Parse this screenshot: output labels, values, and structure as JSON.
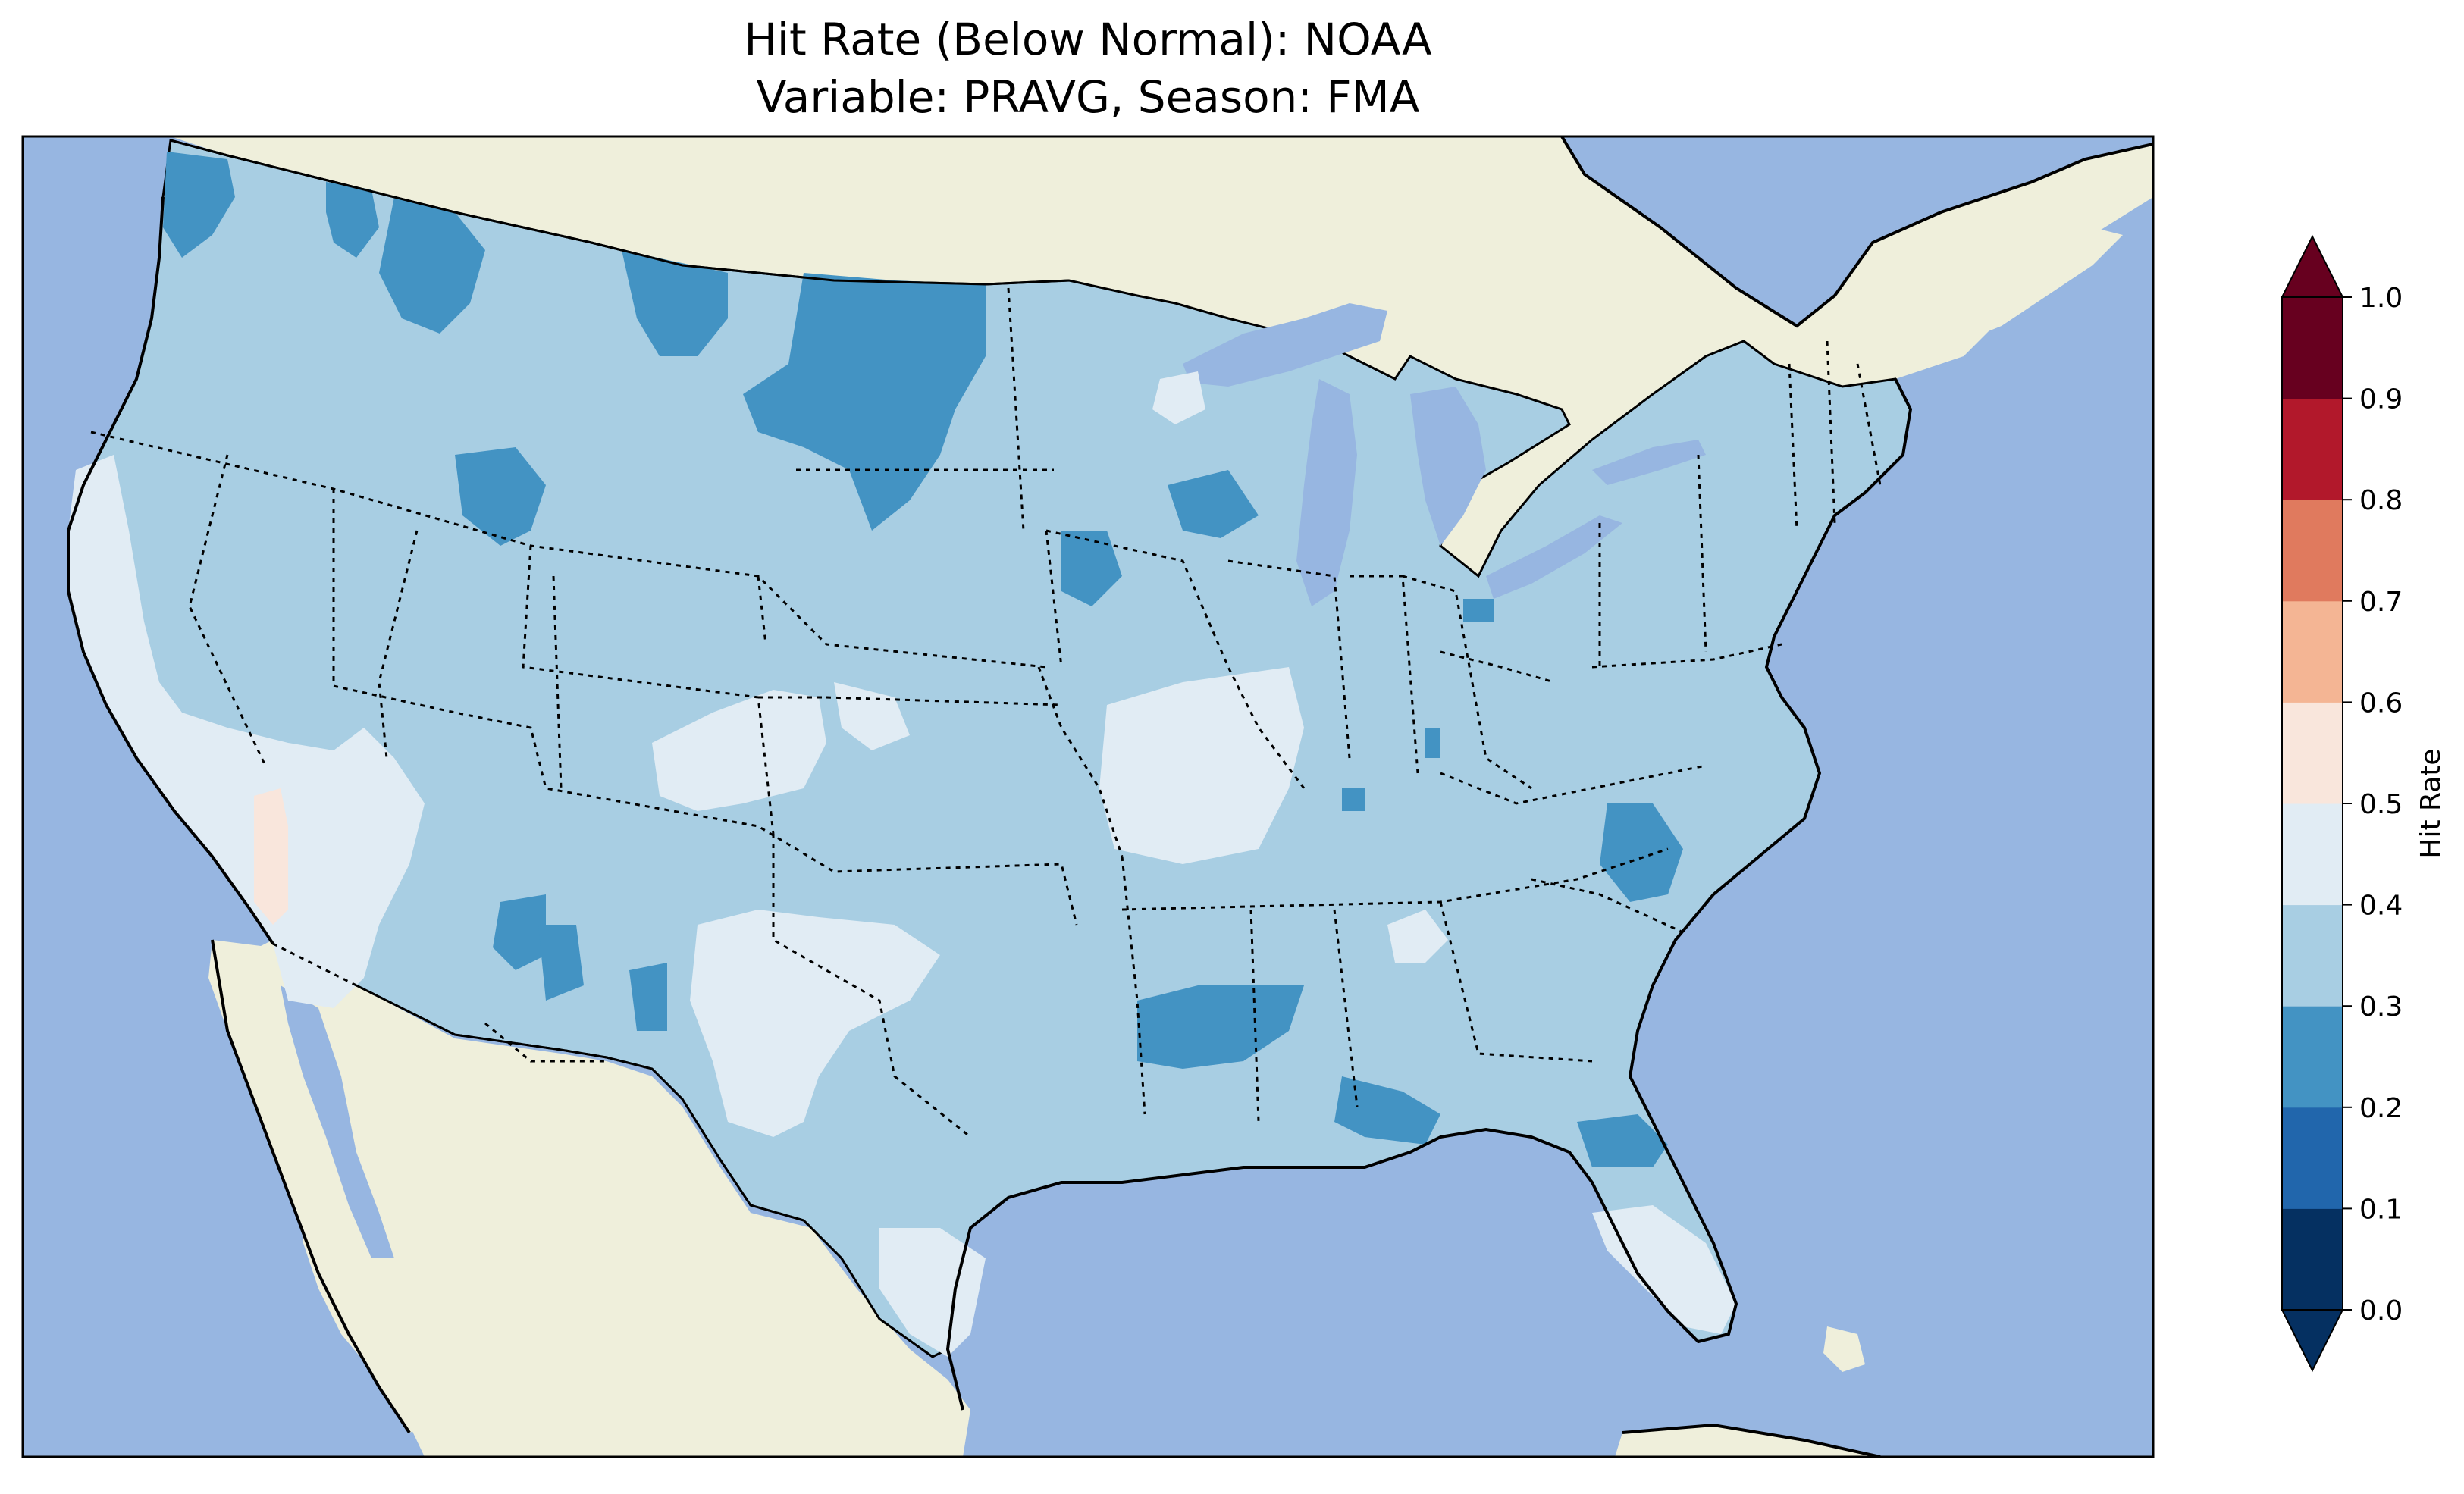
{
  "title": {
    "line1": "Hit Rate (Below Normal): NOAA",
    "line2": "Variable: PRAVG, Season: FMA"
  },
  "colors": {
    "ocean": "#97b6e1",
    "land": "#efefdb",
    "bin_0_1": "#053061",
    "bin_1_2": "#2166ac",
    "bin_2_3": "#4393c3",
    "bin_3_4": "#a8cee3",
    "bin_4_5": "#e1ecf4",
    "bin_5_6": "#f9e6dc",
    "bin_6_7": "#f4b594",
    "bin_7_8": "#e07a5e",
    "bin_8_9": "#b2182b",
    "bin_9_10": "#67001f"
  },
  "colorbar": {
    "label": "Hit Rate",
    "ticks": [
      "0.0",
      "0.1",
      "0.2",
      "0.3",
      "0.4",
      "0.5",
      "0.6",
      "0.7",
      "0.8",
      "0.9",
      "1.0"
    ],
    "extend": "both"
  }
}
